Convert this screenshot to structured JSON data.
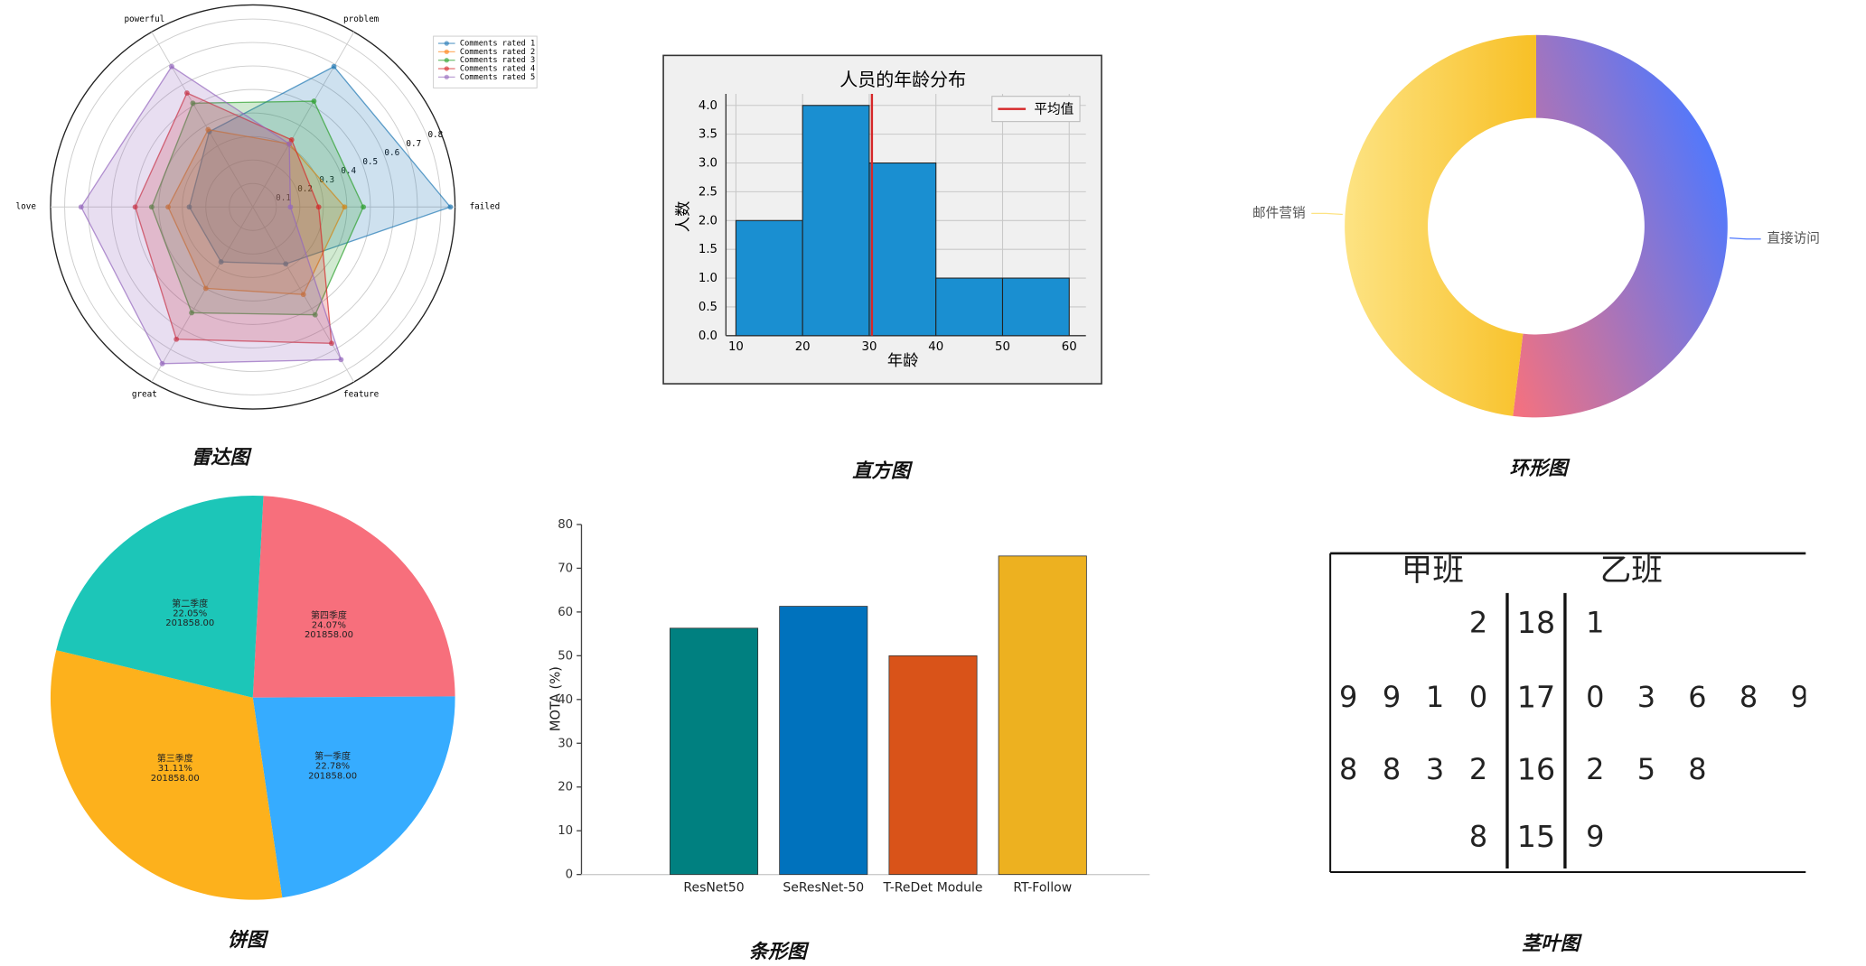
{
  "chart_data": [
    {
      "type": "radar",
      "caption": "雷达图",
      "categories": [
        "failed",
        "problem",
        "powerful",
        "love",
        "great",
        "feature"
      ],
      "series": [
        {
          "name": "Comments rated 1",
          "color": "#1f77b4",
          "values": [
            0.84,
            0.69,
            0.37,
            0.27,
            0.27,
            0.28
          ]
        },
        {
          "name": "Comments rated 2",
          "color": "#ff7f0e",
          "values": [
            0.39,
            0.31,
            0.38,
            0.36,
            0.4,
            0.43
          ]
        },
        {
          "name": "Comments rated 3",
          "color": "#2ca02c",
          "values": [
            0.47,
            0.52,
            0.51,
            0.43,
            0.52,
            0.53
          ]
        },
        {
          "name": "Comments rated 4",
          "color": "#d62728",
          "values": [
            0.28,
            0.33,
            0.56,
            0.5,
            0.65,
            0.67
          ]
        },
        {
          "name": "Comments rated 5",
          "color": "#9467bd",
          "values": [
            0.16,
            0.31,
            0.69,
            0.73,
            0.77,
            0.75
          ]
        }
      ],
      "ylim": [
        0,
        0.86
      ],
      "yticks": [
        0.1,
        0.2,
        0.3,
        0.4,
        0.5,
        0.6,
        0.7,
        0.8
      ],
      "grid": true,
      "legend": "upper right"
    },
    {
      "type": "histogram",
      "caption": "直方图",
      "title": "人员的年龄分布",
      "bins": [
        10,
        20,
        30,
        40,
        50,
        60
      ],
      "values": [
        2,
        4,
        3,
        1,
        1
      ],
      "color": "#1a8fd1",
      "mean": 30.4,
      "mean_label": "平均值",
      "mean_color": "#d62728",
      "xlabel": "年龄",
      "ylabel": "人数",
      "xlim": [
        8.5,
        62.5
      ],
      "xticks": [
        10,
        20,
        30,
        40,
        50,
        60
      ],
      "ylim": [
        0,
        4.2
      ],
      "yticks": [
        {
          "value": 0,
          "label": "0.0"
        },
        0.5,
        {
          "value": 1,
          "label": "1.0"
        },
        1.5,
        {
          "value": 2,
          "label": "2.0"
        },
        2.5,
        {
          "value": 3,
          "label": "3.0"
        },
        3.5,
        {
          "value": 4,
          "label": "4.0"
        }
      ],
      "grid": true,
      "legend": "upper right"
    },
    {
      "type": "donut",
      "caption": "环形图",
      "categories": [
        "直接访问",
        "邮件营销"
      ],
      "values": [
        335,
        310
      ],
      "colors": [
        [
          "#f7717d",
          "#4e78ff"
        ],
        [
          "#fde383",
          "#f8c026"
        ]
      ]
    },
    {
      "type": "pie",
      "caption": "饼图",
      "categories": [
        "第四季度",
        "第一季度",
        "第三季度",
        "第二季度"
      ],
      "values": [
        24.07,
        22.78,
        31.11,
        22.05
      ],
      "value_labels": [
        "24.07%",
        "22.78%",
        "31.11%",
        "22.05%"
      ],
      "amount_labels": [
        "201858.00",
        "201858.00",
        "201858.00",
        "201858.00"
      ],
      "colors": [
        "#f76f7c",
        "#36acff",
        "#fdb11c",
        "#1cc6b8"
      ]
    },
    {
      "type": "bar",
      "caption": "条形图",
      "categories": [
        "ResNet50",
        "SeResNet-50",
        "T-ReDet Module",
        "RT-Follow"
      ],
      "values": [
        56.3,
        61.3,
        50,
        72.8
      ],
      "colors": [
        "#008080",
        "#0072bd",
        "#d95319",
        "#edb120"
      ],
      "ylabel": "MOTA (%)",
      "ylim": [
        0,
        80
      ],
      "yticks": [
        0,
        10,
        20,
        30,
        40,
        50,
        60,
        70,
        80
      ]
    },
    {
      "type": "stem_leaf",
      "caption": "茎叶图",
      "headers": [
        "甲班",
        "乙班"
      ],
      "stems": [
        18,
        17,
        16,
        15
      ],
      "left_leaves": [
        [
          2
        ],
        [
          9,
          9,
          1,
          0
        ],
        [
          8,
          8,
          3,
          2
        ],
        [
          8
        ]
      ],
      "right_leaves": [
        [
          1
        ],
        [
          0,
          3,
          6,
          8,
          9
        ],
        [
          2,
          5,
          8
        ],
        [
          9
        ]
      ]
    }
  ]
}
